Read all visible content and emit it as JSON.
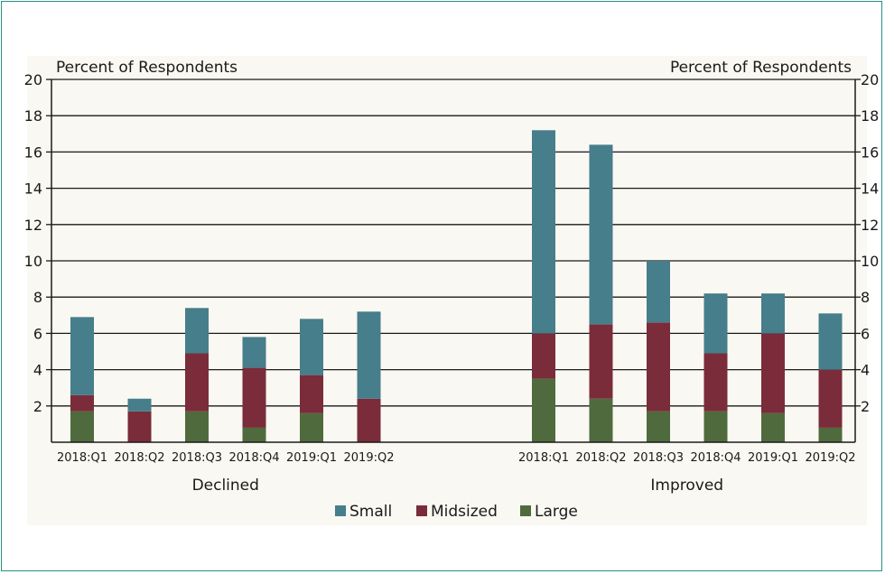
{
  "chart_data": {
    "type": "bar",
    "stacked": true,
    "ylabel_left": "Percent of Respondents",
    "ylabel_right": "Percent of Respondents",
    "ylim": [
      0,
      20
    ],
    "yticks": [
      2,
      4,
      6,
      8,
      10,
      12,
      14,
      16,
      18,
      20
    ],
    "grid": true,
    "legend_position": "bottom-center",
    "groups": [
      {
        "label": "Declined",
        "categories": [
          "2018:Q1",
          "2018:Q2",
          "2018:Q3",
          "2018:Q4",
          "2019:Q1",
          "2019:Q2"
        ],
        "series": [
          {
            "name": "Large",
            "color": "#4f6b3d",
            "values": [
              1.7,
              0,
              1.7,
              0.8,
              1.6,
              0
            ]
          },
          {
            "name": "Midsized",
            "color": "#7a2c3a",
            "values": [
              0.9,
              1.7,
              3.2,
              3.3,
              2.1,
              2.4
            ]
          },
          {
            "name": "Small",
            "color": "#467e8b",
            "values": [
              4.3,
              0.7,
              2.5,
              1.7,
              3.1,
              4.8
            ]
          }
        ]
      },
      {
        "label": "Improved",
        "categories": [
          "2018:Q1",
          "2018:Q2",
          "2018:Q3",
          "2018:Q4",
          "2019:Q1",
          "2019:Q2"
        ],
        "series": [
          {
            "name": "Large",
            "color": "#4f6b3d",
            "values": [
              3.5,
              2.4,
              1.7,
              1.7,
              1.6,
              0.8
            ]
          },
          {
            "name": "Midsized",
            "color": "#7a2c3a",
            "values": [
              2.5,
              4.1,
              4.9,
              3.2,
              4.4,
              3.2
            ]
          },
          {
            "name": "Small",
            "color": "#467e8b",
            "values": [
              11.2,
              9.9,
              3.4,
              3.3,
              2.2,
              3.1
            ]
          }
        ]
      }
    ],
    "legend": [
      {
        "name": "Small",
        "color": "#467e8b"
      },
      {
        "name": "Midsized",
        "color": "#7a2c3a"
      },
      {
        "name": "Large",
        "color": "#4f6b3d"
      }
    ]
  }
}
